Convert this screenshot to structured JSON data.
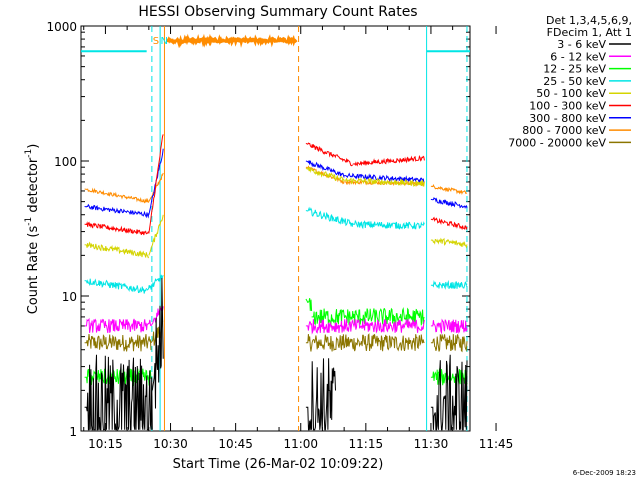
{
  "chart_data": {
    "type": "line",
    "title": "HESSI Observing Summary Count Rates",
    "xlabel": "Start Time (26-Mar-02 10:09:22)",
    "ylabel_parts": [
      "Count Rate (s",
      "-1",
      " detector",
      "-1",
      ")"
    ],
    "xlim_minutes": [
      9.37,
      99.0
    ],
    "ylim": [
      1,
      1000
    ],
    "yscale": "log",
    "xticks": [
      {
        "label": "10:15",
        "min": 15
      },
      {
        "label": "10:30",
        "min": 30
      },
      {
        "label": "10:45",
        "min": 45
      },
      {
        "label": "11:00",
        "min": 60
      },
      {
        "label": "11:15",
        "min": 75
      },
      {
        "label": "11:30",
        "min": 90
      },
      {
        "label": "11:45",
        "min": 105
      }
    ],
    "yticks": [
      {
        "label": "1",
        "value": 1
      },
      {
        "label": "10",
        "value": 10
      },
      {
        "label": "100",
        "value": 100
      },
      {
        "label": "1000",
        "value": 1000
      }
    ],
    "legend": {
      "position": "right",
      "header": [
        "Det 1,3,4,5,6,9,",
        "FDecim 1, Att 1"
      ],
      "entries": [
        {
          "name": "3 - 6 keV",
          "color": "#000000"
        },
        {
          "name": "6 - 12 keV",
          "color": "#ff00ff"
        },
        {
          "name": "12 - 25 keV",
          "color": "#00ff00"
        },
        {
          "name": "25 - 50 keV",
          "color": "#00e5e5"
        },
        {
          "name": "50 - 100 keV",
          "color": "#d4d400"
        },
        {
          "name": "100 - 300 keV",
          "color": "#ff0000"
        },
        {
          "name": "300 - 800 keV",
          "color": "#0000ff"
        },
        {
          "name": "800 - 7000 keV",
          "color": "#ff8c00"
        },
        {
          "name": "7000 - 20000 keV",
          "color": "#8b7500"
        }
      ]
    },
    "series": [
      {
        "name": "3 - 6 keV",
        "color": "#000000",
        "noise": 0.9,
        "segments": [
          {
            "t0": 10.2,
            "t1": 25.8,
            "v0": 1.5,
            "v1": 1.5
          },
          {
            "t0": 25.8,
            "t1": 28.3,
            "v0": 2.0,
            "v1": 7.0
          },
          {
            "t0": 61.2,
            "t1": 68.0,
            "v0": 1.5,
            "v1": 1.5
          },
          {
            "t0": 90.0,
            "t1": 98.3,
            "v0": 1.5,
            "v1": 1.5
          }
        ]
      },
      {
        "name": "6 - 12 keV",
        "color": "#ff00ff",
        "noise": 0.12,
        "segments": [
          {
            "t0": 10.2,
            "t1": 25.5,
            "v0": 6,
            "v1": 6
          },
          {
            "t0": 25.5,
            "t1": 28.3,
            "v0": 6,
            "v1": 8.5
          },
          {
            "t0": 61.2,
            "t1": 88.5,
            "v0": 6,
            "v1": 6
          },
          {
            "t0": 90.0,
            "t1": 98.3,
            "v0": 6,
            "v1": 6
          }
        ]
      },
      {
        "name": "12 - 25 keV",
        "color": "#00ff00",
        "noise": 0.15,
        "segments": [
          {
            "t0": 10.2,
            "t1": 25.5,
            "v0": 2.5,
            "v1": 2.5
          },
          {
            "t0": 61.2,
            "t1": 62.5,
            "v0": 9.5,
            "v1": 8
          },
          {
            "t0": 62.5,
            "t1": 88.5,
            "v0": 7,
            "v1": 7
          },
          {
            "t0": 90.0,
            "t1": 98.3,
            "v0": 2.5,
            "v1": 2.5
          }
        ]
      },
      {
        "name": "25 - 50 keV",
        "color": "#00e5e5",
        "noise": 0.06,
        "segments": [
          {
            "t0": 10.2,
            "t1": 24.5,
            "v0": 13,
            "v1": 11
          },
          {
            "t0": 24.5,
            "t1": 28.3,
            "v0": 11,
            "v1": 14
          },
          {
            "t0": 61.2,
            "t1": 72.0,
            "v0": 43,
            "v1": 34
          },
          {
            "t0": 72.0,
            "t1": 88.5,
            "v0": 34,
            "v1": 33
          },
          {
            "t0": 90.0,
            "t1": 98.3,
            "v0": 12,
            "v1": 12
          }
        ]
      },
      {
        "name": "50 - 100 keV",
        "color": "#d4d400",
        "noise": 0.05,
        "segments": [
          {
            "t0": 10.2,
            "t1": 25.0,
            "v0": 24,
            "v1": 20
          },
          {
            "t0": 25.0,
            "t1": 28.3,
            "v0": 20,
            "v1": 40
          },
          {
            "t0": 61.2,
            "t1": 70.0,
            "v0": 88,
            "v1": 72
          },
          {
            "t0": 70.0,
            "t1": 88.5,
            "v0": 72,
            "v1": 68
          },
          {
            "t0": 90.0,
            "t1": 98.3,
            "v0": 26,
            "v1": 24
          }
        ]
      },
      {
        "name": "100 - 300 keV",
        "color": "#ff0000",
        "noise": 0.04,
        "segments": [
          {
            "t0": 10.2,
            "t1": 25.0,
            "v0": 34,
            "v1": 29
          },
          {
            "t0": 25.0,
            "t1": 28.3,
            "v0": 29,
            "v1": 160
          },
          {
            "t0": 61.2,
            "t1": 72.0,
            "v0": 135,
            "v1": 95
          },
          {
            "t0": 72.0,
            "t1": 88.5,
            "v0": 95,
            "v1": 105
          },
          {
            "t0": 90.0,
            "t1": 98.3,
            "v0": 37,
            "v1": 32
          }
        ]
      },
      {
        "name": "300 - 800 keV",
        "color": "#0000ff",
        "noise": 0.04,
        "segments": [
          {
            "t0": 10.2,
            "t1": 25.0,
            "v0": 46,
            "v1": 40
          },
          {
            "t0": 25.0,
            "t1": 28.3,
            "v0": 40,
            "v1": 120
          },
          {
            "t0": 61.2,
            "t1": 70.0,
            "v0": 100,
            "v1": 78
          },
          {
            "t0": 70.0,
            "t1": 88.5,
            "v0": 78,
            "v1": 72
          },
          {
            "t0": 90.0,
            "t1": 98.3,
            "v0": 52,
            "v1": 46
          }
        ]
      },
      {
        "name": "800 - 7000 keV",
        "color": "#ff8c00",
        "noise": 0.03,
        "segments": [
          {
            "t0": 10.2,
            "t1": 25.0,
            "v0": 62,
            "v1": 50
          },
          {
            "t0": 25.0,
            "t1": 28.3,
            "v0": 50,
            "v1": 80
          },
          {
            "t0": 29.0,
            "t1": 59.0,
            "v0": 780,
            "v1": 780
          },
          {
            "t0": 61.2,
            "t1": 70.0,
            "v0": 90,
            "v1": 70
          },
          {
            "t0": 70.0,
            "t1": 88.5,
            "v0": 70,
            "v1": 68
          },
          {
            "t0": 90.0,
            "t1": 98.3,
            "v0": 65,
            "v1": 58
          }
        ]
      },
      {
        "name": "7000 - 20000 keV",
        "color": "#8b7500",
        "noise": 0.15,
        "segments": [
          {
            "t0": 10.2,
            "t1": 25.5,
            "v0": 4.5,
            "v1": 4.5
          },
          {
            "t0": 25.5,
            "t1": 28.3,
            "v0": 4.5,
            "v1": 6
          },
          {
            "t0": 61.2,
            "t1": 88.5,
            "v0": 4.5,
            "v1": 4.5
          },
          {
            "t0": 90.0,
            "t1": 98.3,
            "v0": 4.5,
            "v1": 4.5
          }
        ]
      }
    ],
    "cyan_level": {
      "color": "#00e5e5",
      "value": 650,
      "ranges": [
        [
          9.37,
          24.5
        ],
        [
          89.0,
          99.0
        ]
      ]
    },
    "dashed_markers": [
      {
        "color": "#00e5e5",
        "min": 25.7
      },
      {
        "color": "#ff8c00",
        "min": 59.5
      },
      {
        "color": "#00e5e5",
        "min": 98.3
      }
    ],
    "solid_markers": [
      {
        "color": "#00e5e5",
        "min": 27.6
      },
      {
        "color": "#ff8c00",
        "min": 28.6
      },
      {
        "color": "#00e5e5",
        "min": 89.0
      }
    ],
    "markers_text": [
      {
        "text": "S",
        "color": "#ff8c00",
        "min": 25.9
      },
      {
        "text": "N",
        "color": "#00e5e5",
        "min": 27.7
      }
    ]
  },
  "footer": {
    "timestamp": "6-Dec-2009 18:23"
  }
}
